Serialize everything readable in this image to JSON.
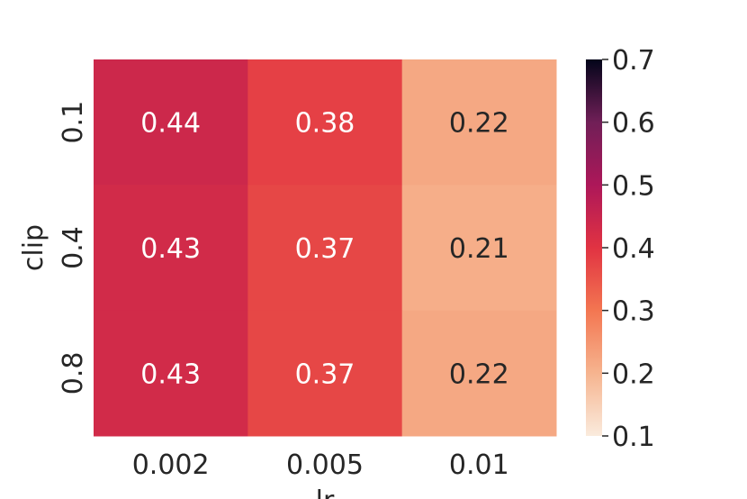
{
  "chart_data": {
    "type": "heatmap",
    "title": "",
    "xlabel": "lr",
    "ylabel": "clip",
    "x_categories": [
      "0.002",
      "0.005",
      "0.01"
    ],
    "y_categories": [
      "0.1",
      "0.4",
      "0.8"
    ],
    "values": [
      [
        0.44,
        0.38,
        0.22
      ],
      [
        0.43,
        0.37,
        0.21
      ],
      [
        0.43,
        0.37,
        0.22
      ]
    ],
    "cell_labels": [
      [
        "0.44",
        "0.38",
        "0.22"
      ],
      [
        "0.43",
        "0.37",
        "0.21"
      ],
      [
        "0.43",
        "0.37",
        "0.22"
      ]
    ],
    "colorbar": {
      "min": 0.1,
      "max": 0.7,
      "ticks": [
        "0.1",
        "0.2",
        "0.3",
        "0.4",
        "0.5",
        "0.6",
        "0.7"
      ]
    },
    "colormap": "rocket_r",
    "grid": false,
    "legend": "colorbar-right"
  }
}
